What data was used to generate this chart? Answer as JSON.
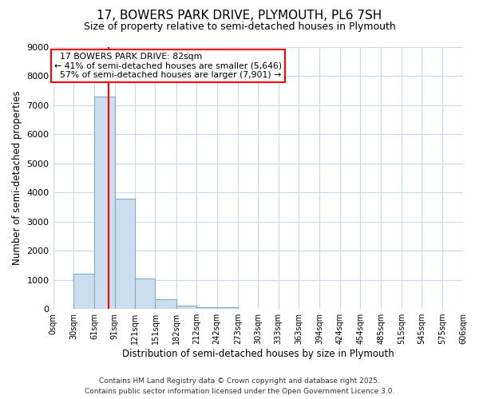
{
  "title1": "17, BOWERS PARK DRIVE, PLYMOUTH, PL6 7SH",
  "title2": "Size of property relative to semi-detached houses in Plymouth",
  "xlabel": "Distribution of semi-detached houses by size in Plymouth",
  "ylabel": "Number of semi-detached properties",
  "bar_color": "#ccddf0",
  "bar_edge_color": "#7aaacf",
  "bin_edges": [
    0,
    30,
    61,
    91,
    121,
    151,
    182,
    212,
    242,
    273,
    303,
    333,
    363,
    394,
    424,
    454,
    485,
    515,
    545,
    575,
    606
  ],
  "bin_labels": [
    "0sqm",
    "30sqm",
    "61sqm",
    "91sqm",
    "121sqm",
    "151sqm",
    "182sqm",
    "212sqm",
    "242sqm",
    "273sqm",
    "303sqm",
    "333sqm",
    "363sqm",
    "394sqm",
    "424sqm",
    "454sqm",
    "485sqm",
    "515sqm",
    "545sqm",
    "575sqm",
    "606sqm"
  ],
  "counts": [
    0,
    1200,
    7300,
    3800,
    1050,
    340,
    120,
    70,
    50,
    0,
    0,
    0,
    0,
    0,
    0,
    0,
    0,
    0,
    0,
    0
  ],
  "property_size": 82,
  "property_label": "17 BOWERS PARK DRIVE: 82sqm",
  "pct_smaller": 41,
  "pct_smaller_n": "5,646",
  "pct_larger": 57,
  "pct_larger_n": "7,901",
  "vline_color": "red",
  "ylim": [
    0,
    9000
  ],
  "yticks": [
    0,
    1000,
    2000,
    3000,
    4000,
    5000,
    6000,
    7000,
    8000,
    9000
  ],
  "background_color": "#ffffff",
  "footer_text": "Contains HM Land Registry data © Crown copyright and database right 2025.\nContains public sector information licensed under the Open Government Licence 3.0.",
  "grid_color": "#c8d8f0",
  "annotation_box_color": "red",
  "annotation_text_color": "black",
  "title1_fontsize": 11,
  "title2_fontsize": 9
}
